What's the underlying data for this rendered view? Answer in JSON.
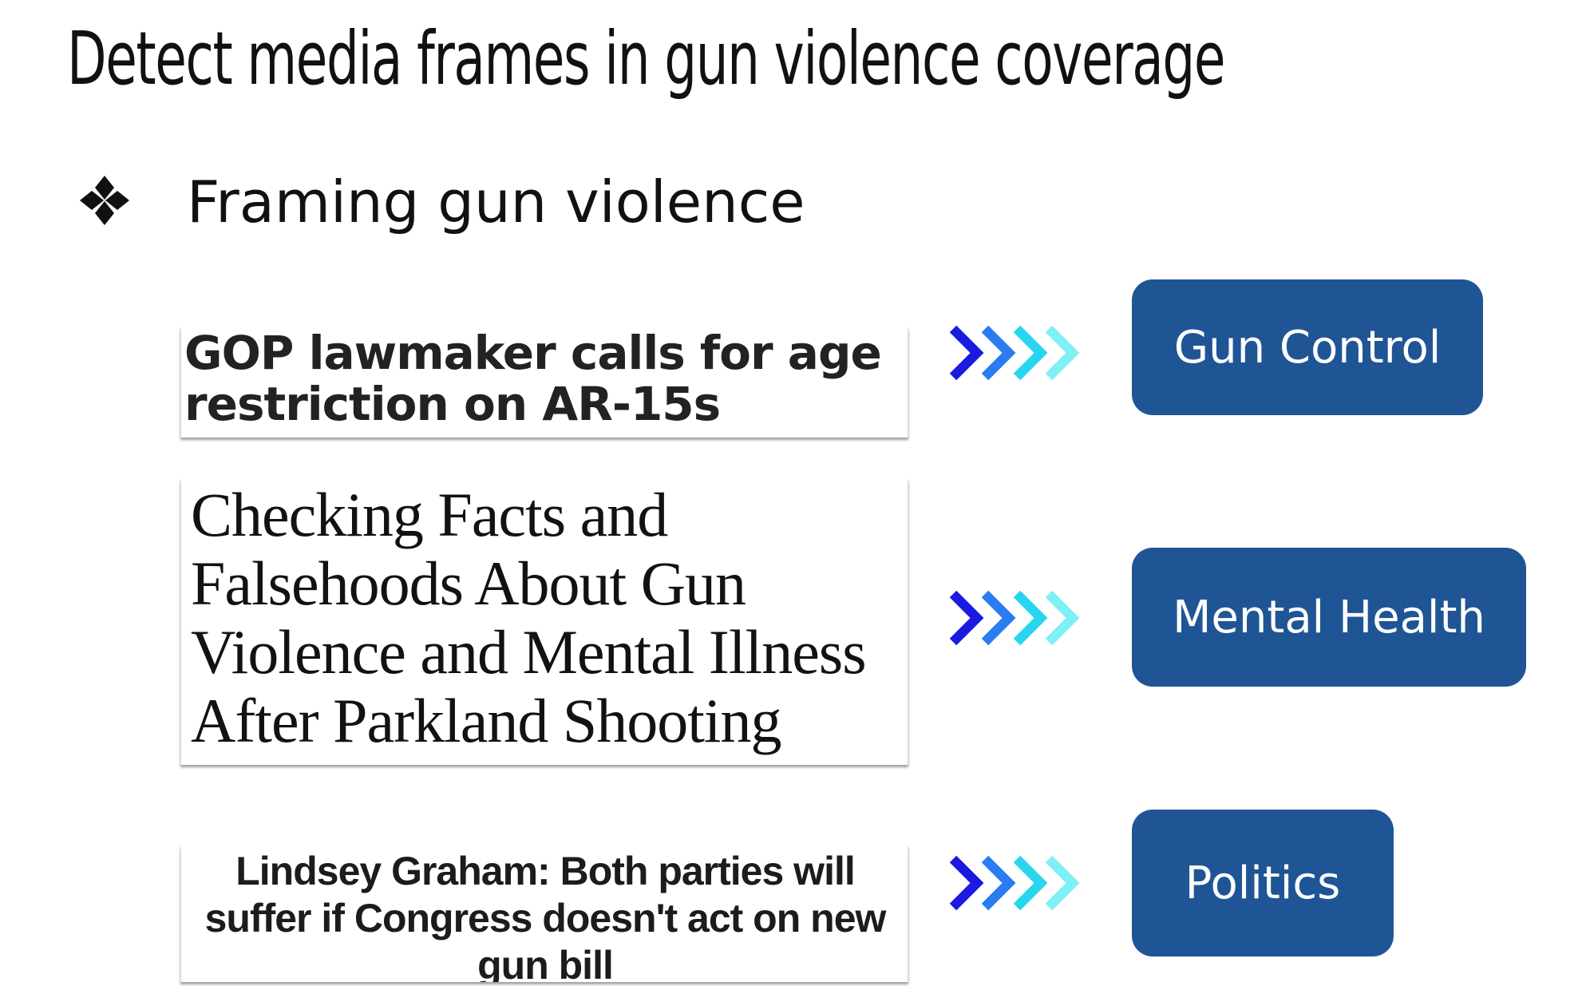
{
  "slide": {
    "title": "Detect media frames in gun violence coverage",
    "bullet": {
      "icon": "four-diamond-bullet-icon",
      "text": "Framing gun violence"
    }
  },
  "colors": {
    "label_background": "#1f5595",
    "label_text": "#ffffff",
    "chevron_gradient": [
      "#1a1ae0",
      "#2a7cf0",
      "#27d6ee",
      "#7ef0f6"
    ]
  },
  "examples": [
    {
      "headline": "GOP lawmaker calls for age restriction on AR-15s",
      "frame": "Gun Control"
    },
    {
      "headline": "Checking Facts and Falsehoods About Gun Violence and Mental Illness After Parkland Shooting",
      "frame": "Mental Health"
    },
    {
      "headline": "Lindsey Graham: Both parties will suffer if Congress doesn't act on new gun bill",
      "frame": "Politics"
    }
  ]
}
